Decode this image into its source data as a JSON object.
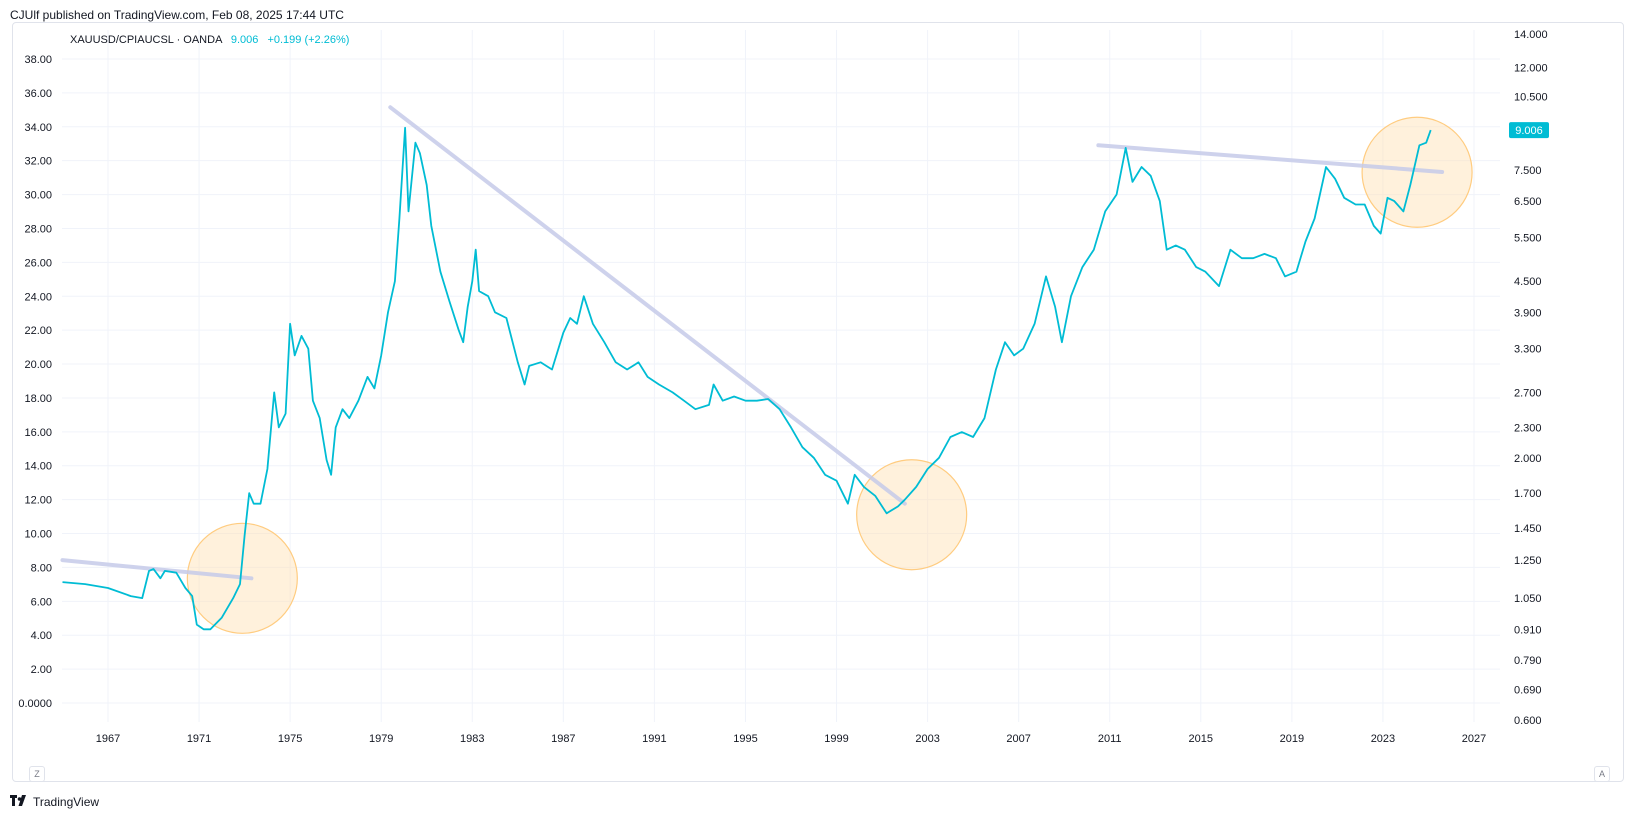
{
  "header": {
    "published_text": "CJUlf published on TradingView.com, Feb 08, 2025 17:44 UTC"
  },
  "symbol": {
    "name": "XAUUSD/CPIAUCSL · OANDA",
    "value": "9.006",
    "change": "+0.199 (+2.26%)"
  },
  "footer": {
    "brand": "TradingView",
    "logo_icon": "tradingview-logo-icon"
  },
  "buttons": {
    "left": "Z",
    "right": "A"
  },
  "colors": {
    "line": "#00bcd4",
    "trendline": "#c5cae9",
    "circle_fill": "#ffe0b2",
    "circle_stroke": "#ffcc80",
    "grid": "#f0f3fa",
    "axis_text": "#131722",
    "price_label_bg": "#00bcd4"
  },
  "chart_data": {
    "type": "line",
    "series_name": "XAUUSD/CPIAUCSL",
    "x_ticks": [
      "1967",
      "1971",
      "1975",
      "1979",
      "1983",
      "1987",
      "1991",
      "1995",
      "1999",
      "2003",
      "2007",
      "2011",
      "2015",
      "2019",
      "2023",
      "2027"
    ],
    "left_axis_ticks": [
      "38.00",
      "36.00",
      "34.00",
      "32.00",
      "30.00",
      "28.00",
      "26.00",
      "24.00",
      "22.00",
      "20.00",
      "18.00",
      "16.00",
      "14.00",
      "12.00",
      "10.00",
      "8.00",
      "6.00",
      "4.00",
      "2.00",
      "0.0000"
    ],
    "right_axis_ticks": [
      "14.000",
      "12.000",
      "10.500",
      "9.006",
      "7.500",
      "6.500",
      "5.500",
      "4.500",
      "3.900",
      "3.300",
      "2.700",
      "2.300",
      "2.000",
      "1.700",
      "1.450",
      "1.250",
      "1.050",
      "0.910",
      "0.790",
      "0.690",
      "0.600"
    ],
    "right_axis_scale": "log",
    "right_axis_range": [
      0.6,
      14.0
    ],
    "last_value_label": "9.006",
    "points": [
      [
        1965.0,
        1.13
      ],
      [
        1966.0,
        1.12
      ],
      [
        1967.0,
        1.1
      ],
      [
        1968.0,
        1.06
      ],
      [
        1968.5,
        1.05
      ],
      [
        1968.8,
        1.19
      ],
      [
        1969.0,
        1.2
      ],
      [
        1969.3,
        1.15
      ],
      [
        1969.5,
        1.19
      ],
      [
        1970.0,
        1.18
      ],
      [
        1970.4,
        1.1
      ],
      [
        1970.7,
        1.06
      ],
      [
        1970.9,
        0.93
      ],
      [
        1971.2,
        0.91
      ],
      [
        1971.5,
        0.91
      ],
      [
        1972.0,
        0.96
      ],
      [
        1972.5,
        1.05
      ],
      [
        1972.8,
        1.12
      ],
      [
        1973.0,
        1.4
      ],
      [
        1973.2,
        1.7
      ],
      [
        1973.4,
        1.62
      ],
      [
        1973.7,
        1.62
      ],
      [
        1974.0,
        1.9
      ],
      [
        1974.3,
        2.7
      ],
      [
        1974.5,
        2.3
      ],
      [
        1974.8,
        2.45
      ],
      [
        1975.0,
        3.7
      ],
      [
        1975.2,
        3.2
      ],
      [
        1975.5,
        3.5
      ],
      [
        1975.8,
        3.3
      ],
      [
        1976.0,
        2.6
      ],
      [
        1976.3,
        2.4
      ],
      [
        1976.6,
        1.98
      ],
      [
        1976.8,
        1.85
      ],
      [
        1977.0,
        2.3
      ],
      [
        1977.3,
        2.5
      ],
      [
        1977.6,
        2.4
      ],
      [
        1978.0,
        2.6
      ],
      [
        1978.4,
        2.9
      ],
      [
        1978.7,
        2.75
      ],
      [
        1979.0,
        3.2
      ],
      [
        1979.3,
        3.9
      ],
      [
        1979.6,
        4.5
      ],
      [
        1979.8,
        6.0
      ],
      [
        1980.05,
        9.1
      ],
      [
        1980.2,
        6.2
      ],
      [
        1980.5,
        8.5
      ],
      [
        1980.7,
        8.1
      ],
      [
        1981.0,
        7.0
      ],
      [
        1981.2,
        5.8
      ],
      [
        1981.6,
        4.7
      ],
      [
        1982.0,
        4.1
      ],
      [
        1982.4,
        3.6
      ],
      [
        1982.6,
        3.4
      ],
      [
        1982.8,
        4.0
      ],
      [
        1983.0,
        4.5
      ],
      [
        1983.15,
        5.2
      ],
      [
        1983.3,
        4.3
      ],
      [
        1983.7,
        4.2
      ],
      [
        1984.0,
        3.9
      ],
      [
        1984.5,
        3.8
      ],
      [
        1985.0,
        3.1
      ],
      [
        1985.3,
        2.8
      ],
      [
        1985.5,
        3.05
      ],
      [
        1986.0,
        3.1
      ],
      [
        1986.5,
        3.0
      ],
      [
        1987.0,
        3.55
      ],
      [
        1987.3,
        3.8
      ],
      [
        1987.6,
        3.7
      ],
      [
        1987.9,
        4.2
      ],
      [
        1988.3,
        3.7
      ],
      [
        1988.8,
        3.4
      ],
      [
        1989.3,
        3.1
      ],
      [
        1989.8,
        3.0
      ],
      [
        1990.3,
        3.1
      ],
      [
        1990.7,
        2.9
      ],
      [
        1991.2,
        2.8
      ],
      [
        1991.8,
        2.7
      ],
      [
        1992.3,
        2.6
      ],
      [
        1992.8,
        2.5
      ],
      [
        1993.4,
        2.55
      ],
      [
        1993.6,
        2.8
      ],
      [
        1994.0,
        2.6
      ],
      [
        1994.5,
        2.65
      ],
      [
        1995.0,
        2.6
      ],
      [
        1995.5,
        2.6
      ],
      [
        1996.0,
        2.62
      ],
      [
        1996.5,
        2.5
      ],
      [
        1997.0,
        2.3
      ],
      [
        1997.5,
        2.1
      ],
      [
        1998.0,
        2.0
      ],
      [
        1998.5,
        1.85
      ],
      [
        1999.0,
        1.8
      ],
      [
        1999.5,
        1.62
      ],
      [
        1999.8,
        1.85
      ],
      [
        2000.2,
        1.75
      ],
      [
        2000.7,
        1.68
      ],
      [
        2001.2,
        1.55
      ],
      [
        2001.7,
        1.6
      ],
      [
        2002.0,
        1.65
      ],
      [
        2002.5,
        1.75
      ],
      [
        2003.0,
        1.9
      ],
      [
        2003.5,
        2.0
      ],
      [
        2004.0,
        2.2
      ],
      [
        2004.5,
        2.25
      ],
      [
        2005.0,
        2.2
      ],
      [
        2005.5,
        2.4
      ],
      [
        2006.0,
        3.0
      ],
      [
        2006.4,
        3.4
      ],
      [
        2006.8,
        3.2
      ],
      [
        2007.2,
        3.3
      ],
      [
        2007.7,
        3.7
      ],
      [
        2008.2,
        4.6
      ],
      [
        2008.6,
        4.0
      ],
      [
        2008.9,
        3.4
      ],
      [
        2009.3,
        4.2
      ],
      [
        2009.8,
        4.8
      ],
      [
        2010.3,
        5.2
      ],
      [
        2010.8,
        6.2
      ],
      [
        2011.3,
        6.7
      ],
      [
        2011.7,
        8.3
      ],
      [
        2012.0,
        7.1
      ],
      [
        2012.4,
        7.6
      ],
      [
        2012.8,
        7.3
      ],
      [
        2013.2,
        6.5
      ],
      [
        2013.5,
        5.2
      ],
      [
        2013.9,
        5.3
      ],
      [
        2014.3,
        5.2
      ],
      [
        2014.8,
        4.8
      ],
      [
        2015.2,
        4.7
      ],
      [
        2015.8,
        4.4
      ],
      [
        2016.3,
        5.2
      ],
      [
        2016.8,
        5.0
      ],
      [
        2017.3,
        5.0
      ],
      [
        2017.8,
        5.1
      ],
      [
        2018.3,
        5.0
      ],
      [
        2018.7,
        4.6
      ],
      [
        2019.2,
        4.7
      ],
      [
        2019.6,
        5.4
      ],
      [
        2020.0,
        6.0
      ],
      [
        2020.5,
        7.6
      ],
      [
        2020.9,
        7.2
      ],
      [
        2021.3,
        6.6
      ],
      [
        2021.8,
        6.4
      ],
      [
        2022.2,
        6.4
      ],
      [
        2022.6,
        5.8
      ],
      [
        2022.9,
        5.6
      ],
      [
        2023.2,
        6.6
      ],
      [
        2023.5,
        6.5
      ],
      [
        2023.9,
        6.2
      ],
      [
        2024.2,
        7.0
      ],
      [
        2024.6,
        8.4
      ],
      [
        2024.9,
        8.5
      ],
      [
        2025.1,
        9.006
      ]
    ],
    "trendlines": [
      [
        [
          1965.0,
          1.25
        ],
        [
          1973.3,
          1.15
        ]
      ],
      [
        [
          1979.4,
          10.0
        ],
        [
          2002.0,
          1.62
        ]
      ],
      [
        [
          2010.5,
          8.4
        ],
        [
          2025.6,
          7.43
        ]
      ]
    ],
    "circles": [
      [
        1972.9,
        1.15
      ],
      [
        2002.3,
        1.54
      ],
      [
        2024.5,
        7.42
      ]
    ]
  }
}
